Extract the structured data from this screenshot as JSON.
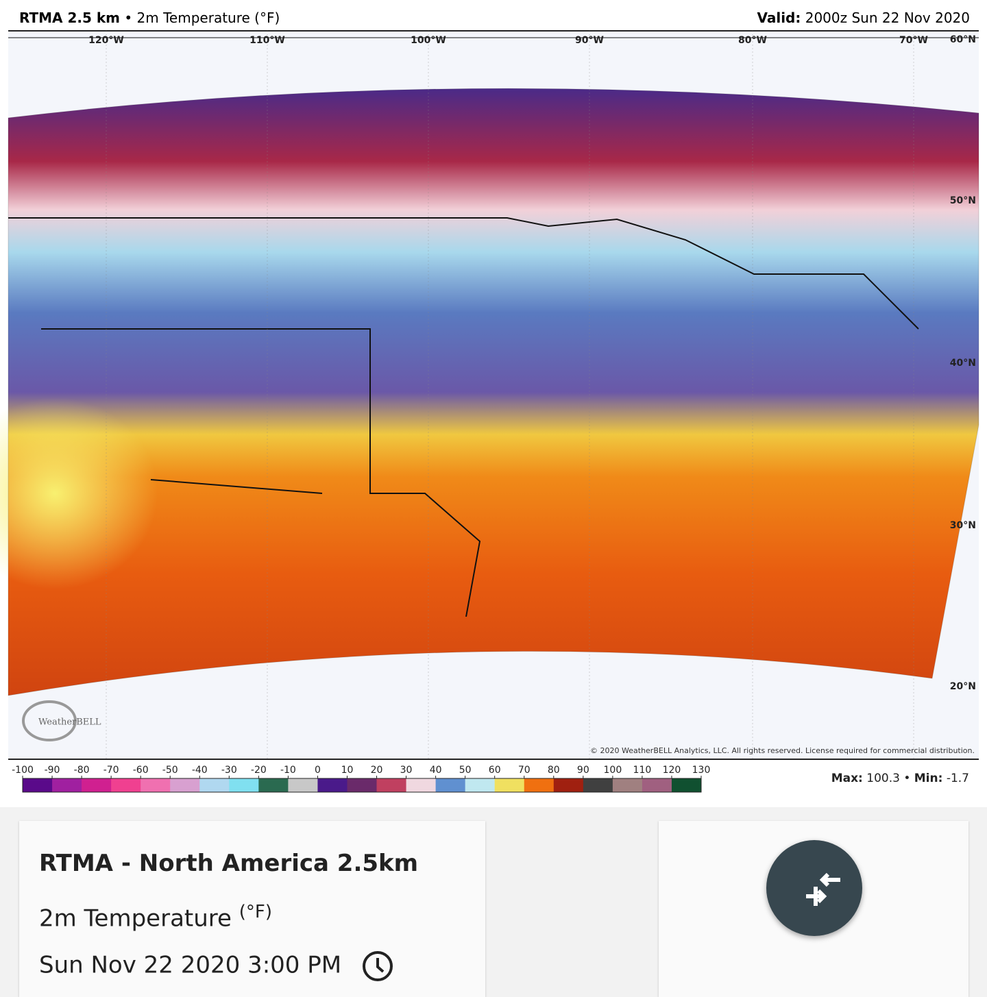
{
  "header": {
    "model": "RTMA 2.5 km",
    "separator": "•",
    "field": "2m Temperature (°F)",
    "valid_label": "Valid:",
    "valid_time": "2000z Sun 22 Nov 2020"
  },
  "map": {
    "longitude_labels": [
      "120°W",
      "110°W",
      "100°W",
      "90°W",
      "80°W",
      "70°W"
    ],
    "latitude_labels": [
      "60°N",
      "50°N",
      "40°N",
      "30°N",
      "20°N"
    ],
    "logo": "WeatherBELL",
    "copyright": "© 2020 WeatherBELL Analytics, LLC. All rights reserved. License required for commercial distribution."
  },
  "legend": {
    "ticks": [
      -100,
      -90,
      -80,
      -70,
      -60,
      -50,
      -40,
      -30,
      -20,
      -10,
      0,
      10,
      20,
      30,
      40,
      50,
      60,
      70,
      80,
      90,
      100,
      110,
      120,
      130
    ],
    "colors": [
      "#5a0a8a",
      "#a020a0",
      "#d02090",
      "#f04090",
      "#f070b0",
      "#d8a0d0",
      "#b0d8f0",
      "#80e0f0",
      "#2a6a50",
      "#c8c8c8",
      "#4a1a8a",
      "#6a2a6a",
      "#c04060",
      "#f0d8e0",
      "#6090d0",
      "#c0e8f0",
      "#f0e060",
      "#f07010",
      "#a02010",
      "#404040",
      "#a08080",
      "#a06080",
      "#105030"
    ],
    "max_label": "Max:",
    "max": 100.3,
    "separator": "•",
    "min_label": "Min:",
    "min": -1.7
  },
  "card": {
    "title": "RTMA - North America 2.5km",
    "field": "2m Temperature",
    "unit": "(°F)",
    "time": "Sun Nov 22 2020 3:00 PM"
  }
}
